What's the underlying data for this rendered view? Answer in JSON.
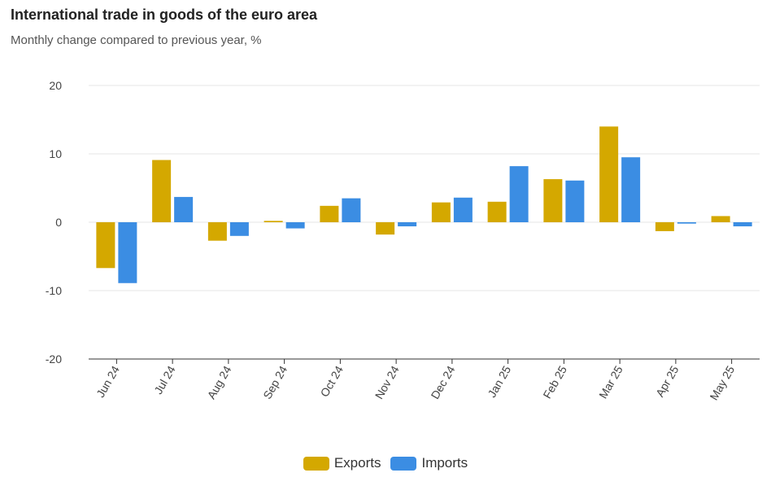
{
  "header": {
    "title": "International trade in goods of the euro area",
    "subtitle": "Monthly change compared to previous year, %"
  },
  "chart_data": {
    "type": "bar",
    "title": "International trade in goods of the euro area",
    "subtitle": "Monthly change compared to previous year, %",
    "xlabel": "",
    "ylabel": "",
    "categories": [
      "Jun 24",
      "Jul 24",
      "Aug 24",
      "Sep 24",
      "Oct 24",
      "Nov 24",
      "Dec 24",
      "Jan 25",
      "Feb 25",
      "Mar 25",
      "Apr 25",
      "May 25"
    ],
    "series": [
      {
        "name": "Exports",
        "color": "#d4a800",
        "values": [
          -6.7,
          9.1,
          -2.7,
          0.2,
          2.4,
          -1.8,
          2.9,
          3.0,
          6.3,
          14.0,
          -1.3,
          0.9
        ]
      },
      {
        "name": "Imports",
        "color": "#3b8de3",
        "values": [
          -8.9,
          3.7,
          -2.0,
          -0.9,
          3.5,
          -0.6,
          3.6,
          8.2,
          6.1,
          9.5,
          -0.2,
          -0.6
        ]
      }
    ],
    "ylim": [
      -20,
      20
    ],
    "yticks": [
      "20",
      "10",
      "0",
      "-10",
      "-20"
    ],
    "grid": true,
    "legend": "bottom-center"
  }
}
